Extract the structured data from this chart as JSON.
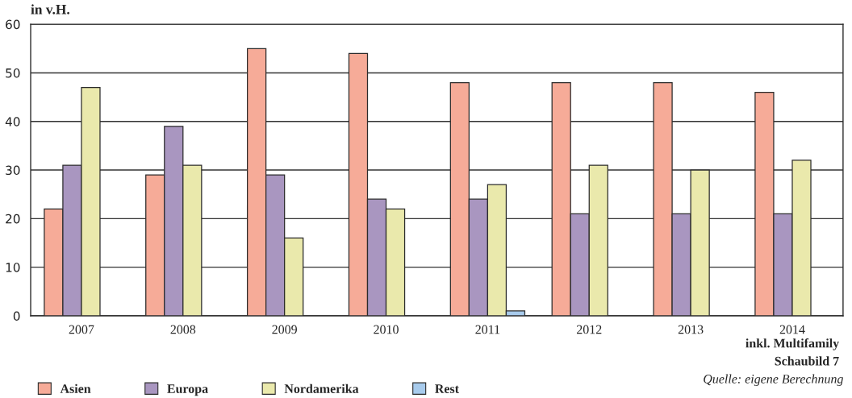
{
  "chart_data": {
    "type": "bar",
    "ylabel": "in v.H.",
    "categories": [
      "2007",
      "2008",
      "2009",
      "2010",
      "2011",
      "2012",
      "2013",
      "2014"
    ],
    "series": [
      {
        "name": "Asien",
        "color": "#f6ab98",
        "values": [
          22,
          29,
          55,
          54,
          48,
          48,
          48,
          46
        ]
      },
      {
        "name": "Europa",
        "color": "#a996c0",
        "values": [
          31,
          39,
          29,
          24,
          24,
          21,
          21,
          21
        ]
      },
      {
        "name": "Nordamerika",
        "color": "#eae9ac",
        "values": [
          47,
          31,
          16,
          22,
          27,
          31,
          30,
          32
        ]
      },
      {
        "name": "Rest",
        "color": "#a8cbec",
        "values": [
          null,
          null,
          null,
          null,
          1,
          null,
          null,
          null
        ]
      }
    ],
    "ylim": [
      0,
      60
    ],
    "yticks": [
      0,
      10,
      20,
      30,
      40,
      50,
      60
    ],
    "grid": "y",
    "legend": "bottom left",
    "annotations": [
      "inkl. Multifamily",
      "Schaubild 7",
      "Quelle: eigene Berechnung"
    ]
  }
}
